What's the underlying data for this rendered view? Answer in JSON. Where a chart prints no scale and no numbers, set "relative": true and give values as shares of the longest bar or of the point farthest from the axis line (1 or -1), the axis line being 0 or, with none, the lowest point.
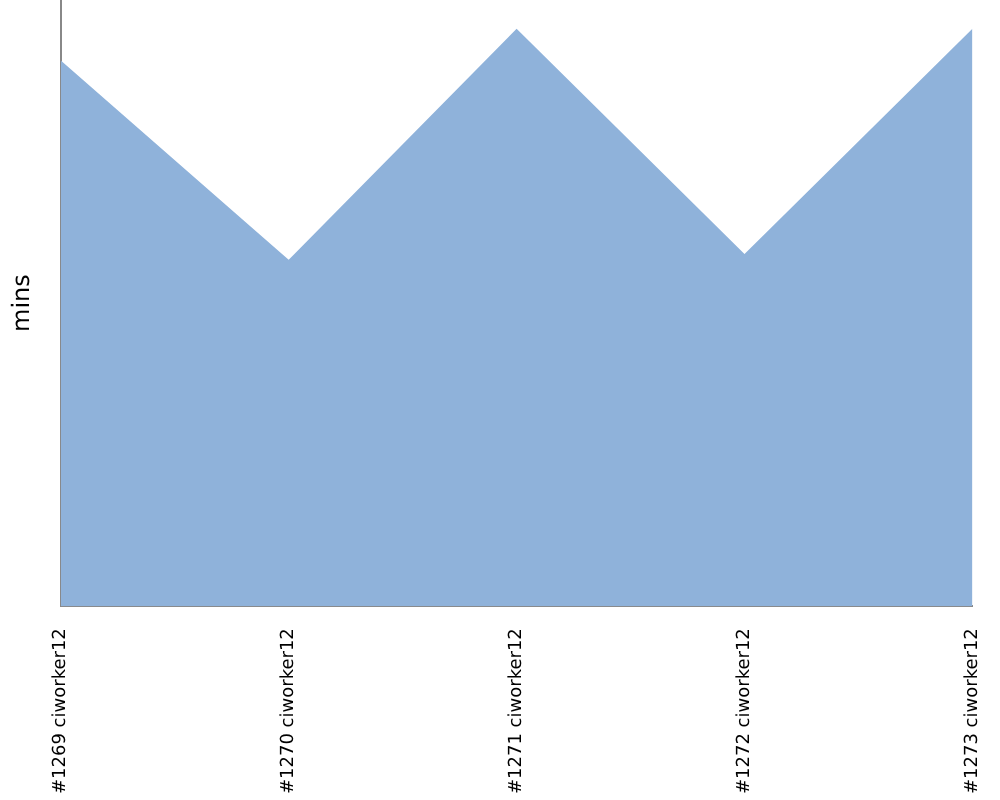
{
  "chart_data": {
    "type": "area",
    "relative": true,
    "ylabel": "mins",
    "categories": [
      "#1269 ciworker12",
      "#1270 ciworker12",
      "#1271 ciworker12",
      "#1272 ciworker12",
      "#1273 ciworker12"
    ],
    "series": [
      {
        "color": "#8fb2da",
        "values": [
          0.945,
          0.6,
          1,
          0.61,
          1
        ]
      }
    ],
    "grid": false,
    "legend": false
  }
}
